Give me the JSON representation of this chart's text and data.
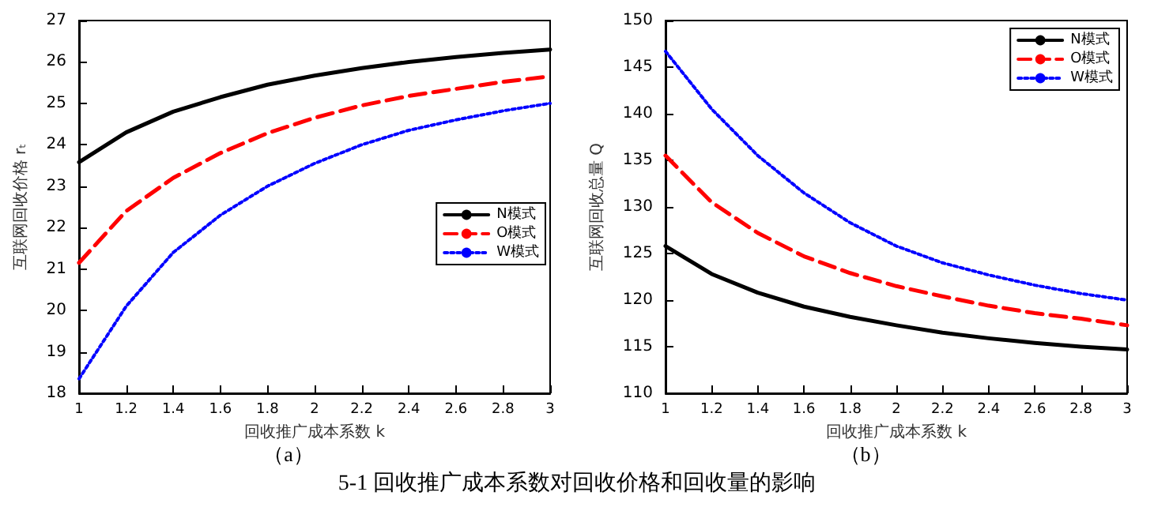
{
  "chart_data": [
    {
      "type": "line",
      "xlabel": "回收推广成本系数 k",
      "ylabel": "互联网回收价格 rₜ",
      "x": [
        1,
        1.2,
        1.4,
        1.6,
        1.8,
        2,
        2.2,
        2.4,
        2.6,
        2.8,
        3
      ],
      "xlim": [
        1,
        3
      ],
      "xticks": [
        1,
        1.2,
        1.4,
        1.6,
        1.8,
        2,
        2.2,
        2.4,
        2.6,
        2.8,
        3
      ],
      "ylim": [
        18,
        27
      ],
      "yticks": [
        18,
        19,
        20,
        21,
        22,
        23,
        24,
        25,
        26,
        27
      ],
      "grid": false,
      "legend": "right",
      "marker": "none",
      "annotations": [
        "（a）",
        "5-1  回收推广成本系数对回收价格和回收量的影响"
      ],
      "series": [
        {
          "name": "N模式",
          "color": "#000000",
          "line_style": "solid",
          "values": [
            23.58,
            24.3,
            24.8,
            25.15,
            25.45,
            25.67,
            25.85,
            26.0,
            26.12,
            26.22,
            26.3
          ]
        },
        {
          "name": "O模式",
          "color": "#ff0000",
          "line_style": "dashed",
          "values": [
            21.15,
            22.4,
            23.2,
            23.8,
            24.28,
            24.65,
            24.95,
            25.18,
            25.35,
            25.52,
            25.65
          ]
        },
        {
          "name": "W模式",
          "color": "#0000ff",
          "line_style": "dotted",
          "values": [
            18.35,
            20.1,
            21.4,
            22.3,
            23.0,
            23.55,
            24.0,
            24.35,
            24.6,
            24.82,
            25.0
          ]
        }
      ]
    },
    {
      "type": "line",
      "xlabel": "回收推广成本系数 k",
      "ylabel": "互联网回收总量 Q",
      "x": [
        1,
        1.2,
        1.4,
        1.6,
        1.8,
        2,
        2.2,
        2.4,
        2.6,
        2.8,
        3
      ],
      "xlim": [
        1,
        3
      ],
      "xticks": [
        1,
        1.2,
        1.4,
        1.6,
        1.8,
        2,
        2.2,
        2.4,
        2.6,
        2.8,
        3
      ],
      "ylim": [
        110,
        150
      ],
      "yticks": [
        110,
        115,
        120,
        125,
        130,
        135,
        140,
        145,
        150
      ],
      "grid": false,
      "legend": "top right",
      "marker": "none",
      "annotations": [
        "（b）"
      ],
      "series": [
        {
          "name": "N模式",
          "color": "#000000",
          "line_style": "solid",
          "values": [
            125.8,
            122.8,
            120.8,
            119.3,
            118.2,
            117.3,
            116.5,
            115.9,
            115.4,
            115.0,
            114.7
          ]
        },
        {
          "name": "O模式",
          "color": "#ff0000",
          "line_style": "dashed",
          "values": [
            135.5,
            130.5,
            127.2,
            124.7,
            122.9,
            121.5,
            120.4,
            119.4,
            118.6,
            118.0,
            117.3
          ]
        },
        {
          "name": "W模式",
          "color": "#0000ff",
          "line_style": "dotted",
          "values": [
            146.7,
            140.5,
            135.5,
            131.5,
            128.3,
            125.8,
            124.0,
            122.7,
            121.6,
            120.7,
            120.0
          ]
        }
      ]
    }
  ]
}
